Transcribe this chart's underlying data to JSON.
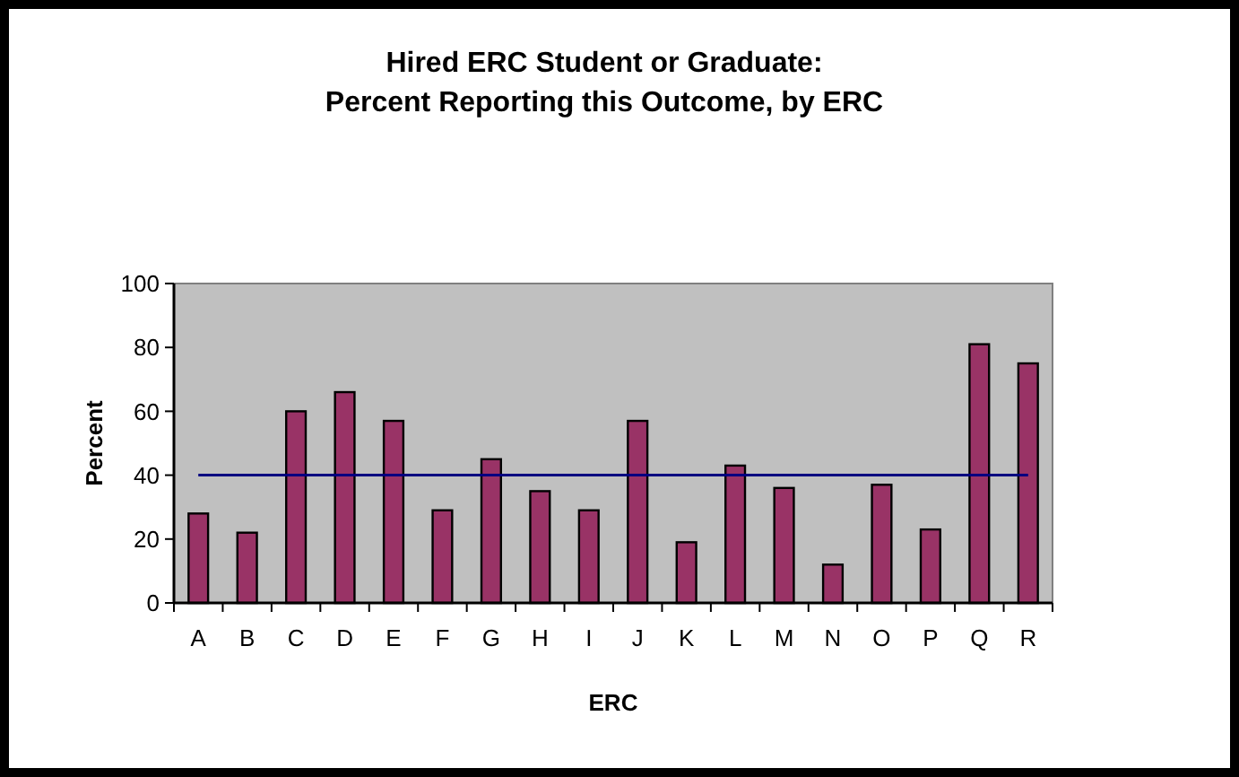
{
  "chart_data": {
    "type": "bar",
    "title": "Hired ERC Student or Graduate:\nPercent Reporting this Outcome, by ERC",
    "xlabel": "ERC",
    "ylabel": "Percent",
    "categories": [
      "A",
      "B",
      "C",
      "D",
      "E",
      "F",
      "G",
      "H",
      "I",
      "J",
      "K",
      "L",
      "M",
      "N",
      "O",
      "P",
      "Q",
      "R"
    ],
    "values": [
      28,
      22,
      60,
      66,
      57,
      29,
      45,
      35,
      29,
      57,
      19,
      43,
      36,
      12,
      37,
      23,
      81,
      75
    ],
    "color": "#993366",
    "ylim": [
      0,
      100
    ],
    "yticks": [
      0,
      20,
      40,
      60,
      80,
      100
    ],
    "grid": false,
    "ref_lines": [
      {
        "axis": "y",
        "value": 40,
        "color": "#000080"
      }
    ]
  }
}
